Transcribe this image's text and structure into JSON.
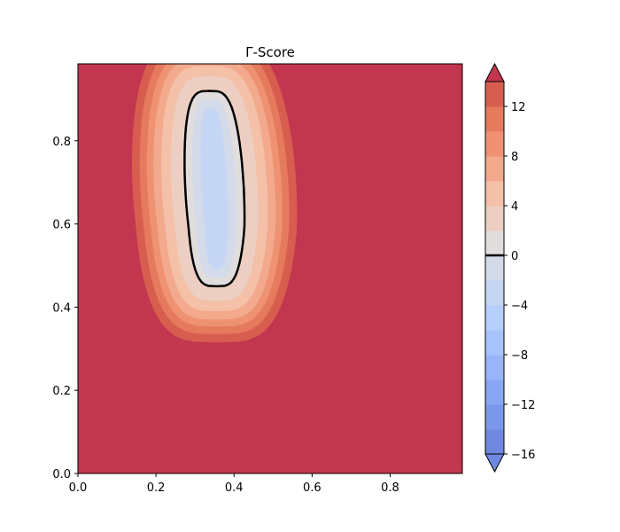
{
  "chart_data": {
    "type": "contour",
    "title": "Γ-Score",
    "xlabel": "",
    "ylabel": "",
    "xlim": [
      0.0,
      0.985
    ],
    "ylim": [
      0.0,
      0.985
    ],
    "x_ticks": [
      "0.0",
      "0.2",
      "0.4",
      "0.6",
      "0.8"
    ],
    "y_ticks": [
      "0.0",
      "0.2",
      "0.4",
      "0.6",
      "0.8"
    ],
    "grid": false,
    "colormap": "coolwarm",
    "colorbar": {
      "levels": [
        -16,
        -14,
        -12,
        -10,
        -8,
        -6,
        -4,
        -2,
        0,
        2,
        4,
        6,
        8,
        10,
        12,
        14
      ],
      "tick_labels": [
        "−16",
        "−12",
        "−8",
        "−4",
        "0",
        "4",
        "8",
        "12"
      ],
      "extend": "both",
      "zero_line": true
    },
    "highlighted_contour": {
      "level": 0,
      "color": "#000000"
    },
    "region": {
      "background_value": 14,
      "minimum_value": -5,
      "shape": "vertical elongated well",
      "x_range": [
        0.28,
        0.43
      ],
      "y_range": [
        0.45,
        0.92
      ]
    },
    "colors": {
      "-16": "#6f88e0",
      "-14": "#7b97ea",
      "-12": "#89a6f3",
      "-10": "#98b5fa",
      "-8": "#a7c3fd",
      "-6": "#b6cffe",
      "-4": "#c5d6f4",
      "-2": "#d3dbeb",
      "0": "#e0dddc",
      "2": "#eccfc2",
      "4": "#f4c0a8",
      "6": "#f3a98c",
      "8": "#ee9272",
      "10": "#e57a5d",
      "12": "#d75e4f",
      "14": "#c3364f"
    }
  }
}
